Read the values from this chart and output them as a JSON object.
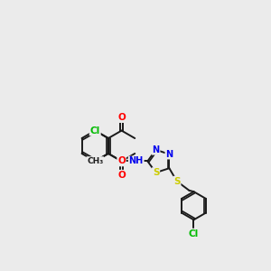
{
  "bg_color": "#ebebeb",
  "bond_color": "#1a1a1a",
  "atom_colors": {
    "O": "#ff0000",
    "N": "#0000ee",
    "S": "#cccc00",
    "Cl": "#00bb00",
    "C": "#1a1a1a",
    "H": "#555555"
  },
  "figsize": [
    3.0,
    3.0
  ],
  "dpi": 100
}
